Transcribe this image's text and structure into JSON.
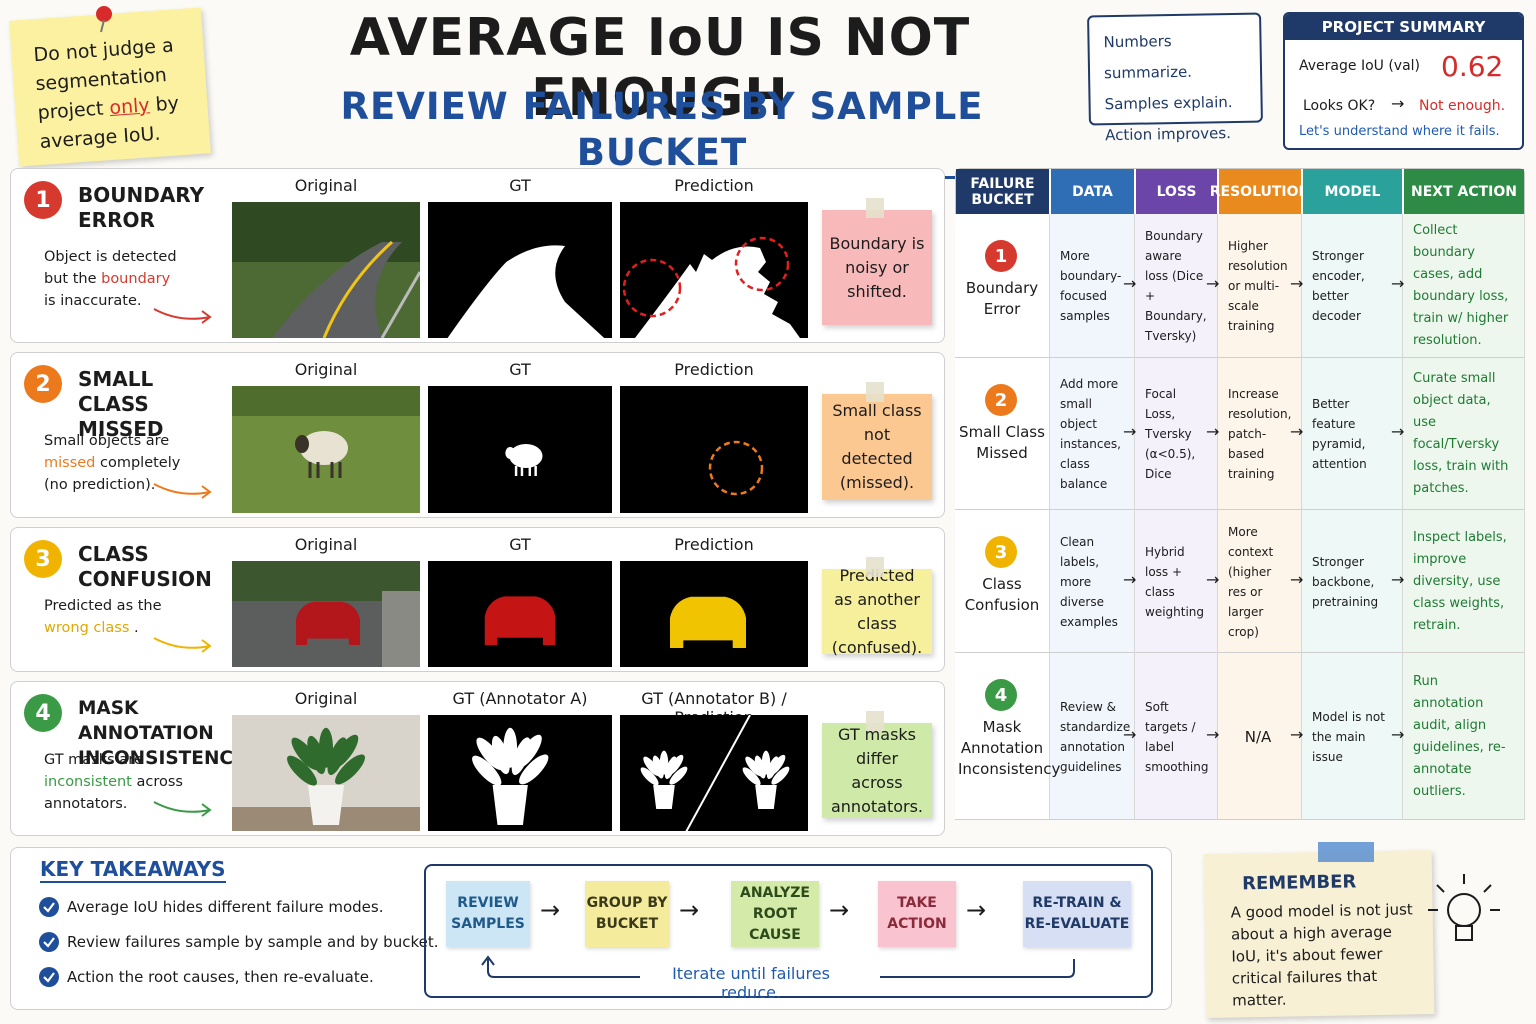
{
  "sticky_note": {
    "before": "Do not judge a segmentation project",
    "emphasis": "only",
    "after": "by average IoU."
  },
  "header": {
    "title": "AVERAGE IoU IS NOT ENOUGH",
    "subtitle": "REVIEW FAILURES BY SAMPLE BUCKET"
  },
  "motto": [
    "Numbers summarize.",
    "Samples explain.",
    "Action improves."
  ],
  "summary": {
    "title": "PROJECT SUMMARY",
    "metric_label": "Average IoU (val)",
    "metric_value": 0.62,
    "question": "Looks OK?",
    "answer": "Not enough.",
    "note": "Let's understand where it fails."
  },
  "failures": [
    {
      "number": 1,
      "title": "BOUNDARY ERROR",
      "description": {
        "before": "Object is detected but the",
        "highlight": "boundary",
        "after": "is inaccurate."
      },
      "panels": [
        "Original",
        "GT",
        "Prediction"
      ],
      "note": "Boundary is noisy or shifted."
    },
    {
      "number": 2,
      "title": "SMALL CLASS MISSED",
      "description": {
        "before": "Small objects are",
        "highlight": "missed",
        "after": "completely (no prediction)."
      },
      "panels": [
        "Original",
        "GT",
        "Prediction"
      ],
      "note": "Small class not detected (missed)."
    },
    {
      "number": 3,
      "title": "CLASS CONFUSION",
      "description": {
        "before": "Predicted as the",
        "highlight": "wrong class",
        "after": "."
      },
      "panels": [
        "Original",
        "GT",
        "Prediction"
      ],
      "note": "Predicted as another class (confused)."
    },
    {
      "number": 4,
      "title": "MASK ANNOTATION INCONSISTENCY",
      "description": {
        "before": "GT masks are",
        "highlight": "inconsistent",
        "after": "across annotators."
      },
      "panels": [
        "Original",
        "GT (Annotator A)",
        "GT (Annotator B) / Prediction"
      ],
      "note": "GT masks differ across annotators."
    }
  ],
  "table": {
    "headers": [
      "FAILURE BUCKET",
      "DATA",
      "LOSS",
      "RESOLUTION",
      "MODEL",
      "NEXT ACTION"
    ],
    "rows": [
      {
        "number": 1,
        "bucket": "Boundary Error",
        "cells": [
          "More boundary-focused samples",
          "Boundary aware loss (Dice + Boundary, Tversky)",
          "Higher resolution or multi-scale training",
          "Stronger encoder, better decoder",
          "Collect boundary cases, add boundary loss, train w/ higher resolution."
        ]
      },
      {
        "number": 2,
        "bucket": "Small Class Missed",
        "cells": [
          "Add more small object instances, class balance",
          "Focal Loss, Tversky (α<0.5), Dice",
          "Increase resolution, patch-based training",
          "Better feature pyramid, attention",
          "Curate small object data, use focal/Tversky loss, train with patches."
        ]
      },
      {
        "number": 3,
        "bucket": "Class Confusion",
        "cells": [
          "Clean labels, more diverse examples",
          "Hybrid loss + class weighting",
          "More context (higher res or larger crop)",
          "Stronger backbone, pretraining",
          "Inspect labels, improve diversity, use class weights, retrain."
        ]
      },
      {
        "number": 4,
        "bucket": "Mask Annotation Inconsistency",
        "cells": [
          "Review & standardize annotation guidelines",
          "Soft targets / label smoothing",
          "N/A",
          "Model is not the main issue",
          "Run annotation audit, align guidelines, re-annotate outliers."
        ]
      }
    ]
  },
  "takeaways": {
    "title": "KEY TAKEAWAYS",
    "items": [
      "Average IoU hides different failure modes.",
      "Review failures sample by sample and by bucket.",
      "Action the root causes, then re-evaluate."
    ]
  },
  "workflow": {
    "steps": [
      "REVIEW SAMPLES",
      "GROUP BY BUCKET",
      "ANALYZE ROOT CAUSE",
      "TAKE ACTION",
      "RE-TRAIN & RE-EVALUATE"
    ],
    "loop": "Iterate until failures reduce."
  },
  "remember": {
    "title": "REMEMBER",
    "text": "A good model is not just about a high average IoU, it's about fewer critical failures that matter."
  }
}
